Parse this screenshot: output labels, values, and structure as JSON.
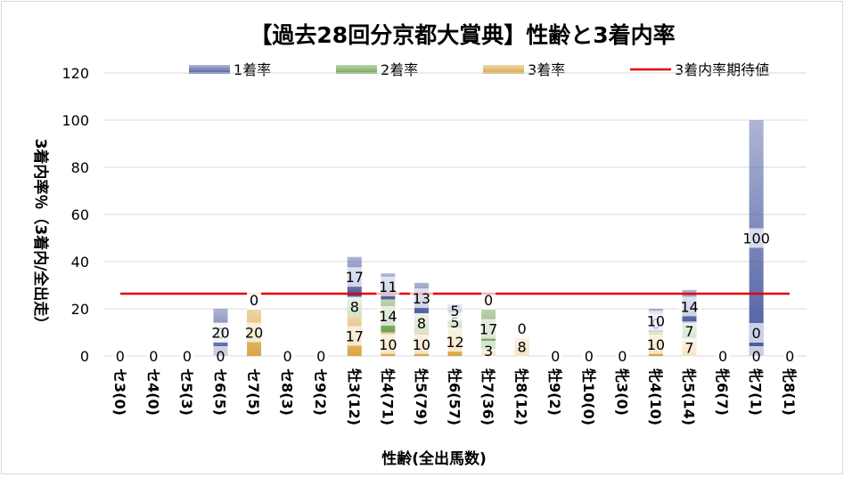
{
  "chart_data": {
    "type": "bar",
    "title": "【過去28回分京都大賞典】性齢と3着内率",
    "xlabel": "性齢(全出馬数)",
    "ylabel": "3着内率％（3着内/全出走）",
    "ylim": [
      0,
      120
    ],
    "yticks": [
      "0",
      "20",
      "40",
      "60",
      "80",
      "100",
      "120"
    ],
    "stacked": true,
    "grid": true,
    "legend_position": "top",
    "categories": [
      "セ3(0)",
      "セ4(0)",
      "セ5(3)",
      "セ6(5)",
      "セ7(5)",
      "セ8(3)",
      "セ9(2)",
      "牡3(12)",
      "牡4(71)",
      "牡5(79)",
      "牡6(57)",
      "牡7(36)",
      "牡8(12)",
      "牡9(2)",
      "牡10(0)",
      "牝3(0)",
      "牝4(10)",
      "牝5(14)",
      "牝6(7)",
      "牝7(1)",
      "牝8(1)"
    ],
    "series": [
      {
        "name": "3着率",
        "color": "#d9a441",
        "values": [
          0,
          0,
          0,
          0,
          20,
          0,
          0,
          17,
          10,
          10,
          12,
          3,
          8,
          0,
          0,
          0,
          10,
          7,
          0,
          0,
          0
        ],
        "labels": [
          "0",
          "0",
          "0",
          "0",
          "20",
          "0",
          "0",
          "17",
          "10",
          "10",
          "12",
          "3",
          "8",
          "0",
          "0",
          "0",
          "10",
          "7",
          "0",
          "0",
          "0"
        ]
      },
      {
        "name": "2着率",
        "color": "#70a050",
        "values": [
          0,
          0,
          0,
          0,
          0,
          0,
          0,
          8,
          14,
          8,
          5,
          17,
          0,
          0,
          0,
          0,
          0,
          7,
          0,
          0,
          0
        ],
        "labels": [
          "",
          "",
          "",
          "0",
          "0",
          "",
          "",
          "8",
          "14",
          "8",
          "5",
          "17",
          "0",
          "",
          "",
          "",
          "0",
          "7",
          "",
          "0",
          ""
        ]
      },
      {
        "name": "1着率",
        "color": "#4a5aa0",
        "values": [
          0,
          0,
          0,
          20,
          0,
          0,
          0,
          17,
          11,
          13,
          5,
          0,
          0,
          0,
          0,
          0,
          10,
          14,
          0,
          100,
          0
        ],
        "labels": [
          "",
          "",
          "",
          "20",
          "0",
          "",
          "",
          "17",
          "11",
          "13",
          "5",
          "0",
          "",
          "",
          "",
          "",
          "10",
          "14",
          "",
          "100",
          ""
        ]
      }
    ],
    "reference_line": {
      "name": "3着内率期待値",
      "value": 26.4,
      "color": "#e00000"
    },
    "legend": [
      "1着率",
      "2着率",
      "3着率",
      "3着内率期待値"
    ]
  }
}
